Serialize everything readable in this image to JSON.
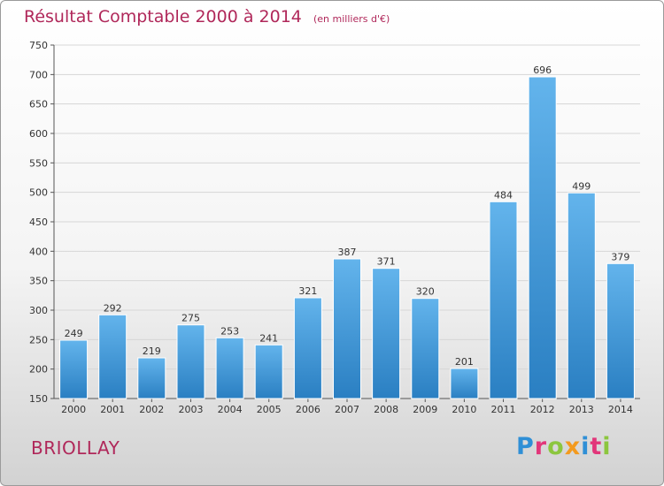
{
  "header": {
    "title": "Résultat Comptable 2000 à 2014",
    "subtitle": "(en milliers d'€)"
  },
  "footer": {
    "commune": "BRIOLLAY",
    "logo_text": "Proxiti",
    "logo_letters": [
      "P",
      "r",
      "o",
      "x",
      "i",
      "t",
      "i"
    ]
  },
  "colors": {
    "title": "#b0285a",
    "bar_top": "#63b4ec",
    "bar_bottom": "#2a7fc2"
  },
  "chart_data": {
    "type": "bar",
    "categories": [
      "2000",
      "2001",
      "2002",
      "2003",
      "2004",
      "2005",
      "2006",
      "2007",
      "2008",
      "2009",
      "2010",
      "2011",
      "2012",
      "2013",
      "2014"
    ],
    "values": [
      249,
      292,
      219,
      275,
      253,
      241,
      321,
      387,
      371,
      320,
      201,
      484,
      696,
      499,
      379
    ],
    "title": "Résultat Comptable 2000 à 2014",
    "subtitle": "(en milliers d'€)",
    "xlabel": "",
    "ylabel": "",
    "ylim": [
      150,
      750
    ],
    "yticks": [
      150,
      200,
      250,
      300,
      350,
      400,
      450,
      500,
      550,
      600,
      650,
      700,
      750
    ],
    "grid": true,
    "legend": "none"
  }
}
